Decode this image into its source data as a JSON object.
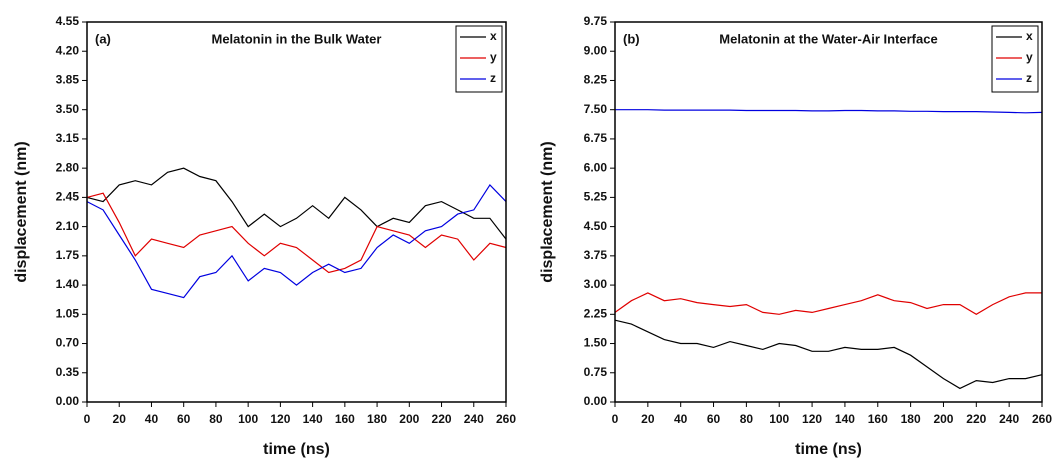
{
  "chart_data": [
    {
      "type": "line",
      "panel": "(a)",
      "title": "Melatonin in the Bulk Water",
      "xlabel": "time (ns)",
      "ylabel": "displacement (nm)",
      "x": [
        0,
        10,
        20,
        30,
        40,
        50,
        60,
        70,
        80,
        90,
        100,
        110,
        120,
        130,
        140,
        150,
        160,
        170,
        180,
        190,
        200,
        210,
        220,
        230,
        240,
        250,
        260
      ],
      "series": [
        {
          "name": "x",
          "color": "#000000",
          "values": [
            2.45,
            2.4,
            2.6,
            2.65,
            2.6,
            2.75,
            2.8,
            2.7,
            2.65,
            2.4,
            2.1,
            2.25,
            2.1,
            2.2,
            2.35,
            2.2,
            2.45,
            2.3,
            2.1,
            2.2,
            2.15,
            2.35,
            2.4,
            2.3,
            2.2,
            2.2,
            1.95
          ]
        },
        {
          "name": "y",
          "color": "#e00000",
          "values": [
            2.45,
            2.5,
            2.15,
            1.75,
            1.95,
            1.9,
            1.85,
            2.0,
            2.05,
            2.1,
            1.9,
            1.75,
            1.9,
            1.85,
            1.7,
            1.55,
            1.6,
            1.7,
            2.1,
            2.05,
            2.0,
            1.85,
            2.0,
            1.95,
            1.7,
            1.9,
            1.85
          ]
        },
        {
          "name": "z",
          "color": "#0000e0",
          "values": [
            2.4,
            2.3,
            2.0,
            1.7,
            1.35,
            1.3,
            1.25,
            1.5,
            1.55,
            1.75,
            1.45,
            1.6,
            1.55,
            1.4,
            1.55,
            1.65,
            1.55,
            1.6,
            1.85,
            2.0,
            1.9,
            2.05,
            2.1,
            2.25,
            2.3,
            2.6,
            2.4
          ]
        }
      ],
      "xlim": [
        0,
        260
      ],
      "xticks": [
        0,
        20,
        40,
        60,
        80,
        100,
        120,
        140,
        160,
        180,
        200,
        220,
        240,
        260
      ],
      "ylim": [
        0,
        4.55
      ],
      "yticks": [
        {
          "value": 0,
          "label": "0.00"
        },
        0.35,
        {
          "value": 0.7,
          "label": "0.70"
        },
        1.05,
        {
          "value": 1.4,
          "label": "1.40"
        },
        1.75,
        {
          "value": 2.1,
          "label": "2.10"
        },
        2.45,
        {
          "value": 2.8,
          "label": "2.80"
        },
        3.15,
        {
          "value": 3.5,
          "label": "3.50"
        },
        3.85,
        {
          "value": 4.2,
          "label": "4.20"
        },
        4.55
      ],
      "legend": "upper right"
    },
    {
      "type": "line",
      "panel": "(b)",
      "title": "Melatonin at the Water-Air Interface",
      "xlabel": "time (ns)",
      "ylabel": "displacement (nm)",
      "x": [
        0,
        10,
        20,
        30,
        40,
        50,
        60,
        70,
        80,
        90,
        100,
        110,
        120,
        130,
        140,
        150,
        160,
        170,
        180,
        190,
        200,
        210,
        220,
        230,
        240,
        250,
        260
      ],
      "series": [
        {
          "name": "x",
          "color": "#000000",
          "values": [
            2.1,
            2.0,
            1.8,
            1.6,
            1.5,
            1.5,
            1.4,
            1.55,
            1.45,
            1.35,
            1.5,
            1.45,
            1.3,
            1.3,
            1.4,
            1.35,
            1.35,
            1.4,
            1.2,
            0.9,
            0.6,
            0.35,
            0.55,
            0.5,
            0.6,
            0.6,
            0.7
          ]
        },
        {
          "name": "y",
          "color": "#e00000",
          "values": [
            2.3,
            2.6,
            2.8,
            2.6,
            2.65,
            2.55,
            2.5,
            2.45,
            2.5,
            2.3,
            2.25,
            2.35,
            2.3,
            2.4,
            2.5,
            2.6,
            2.75,
            2.6,
            2.55,
            2.4,
            2.5,
            2.5,
            2.25,
            2.5,
            2.7,
            2.8,
            2.8
          ]
        },
        {
          "name": "z",
          "color": "#0000e0",
          "values": [
            7.5,
            7.5,
            7.5,
            7.49,
            7.49,
            7.49,
            7.49,
            7.49,
            7.48,
            7.48,
            7.48,
            7.48,
            7.47,
            7.47,
            7.48,
            7.48,
            7.47,
            7.47,
            7.46,
            7.46,
            7.45,
            7.45,
            7.45,
            7.44,
            7.43,
            7.42,
            7.43
          ]
        }
      ],
      "xlim": [
        0,
        260
      ],
      "xticks": [
        0,
        20,
        40,
        60,
        80,
        100,
        120,
        140,
        160,
        180,
        200,
        220,
        240,
        260
      ],
      "ylim": [
        0,
        9.75
      ],
      "yticks": [
        {
          "value": 0,
          "label": "0.00"
        },
        0.75,
        {
          "value": 1.5,
          "label": "1.50"
        },
        2.25,
        {
          "value": 3,
          "label": "3.00"
        },
        3.75,
        {
          "value": 4.5,
          "label": "4.50"
        },
        5.25,
        {
          "value": 6,
          "label": "6.00"
        },
        6.75,
        {
          "value": 7.5,
          "label": "7.50"
        },
        8.25,
        {
          "value": 9,
          "label": "9.00"
        },
        9.75
      ],
      "legend": "upper right"
    }
  ]
}
